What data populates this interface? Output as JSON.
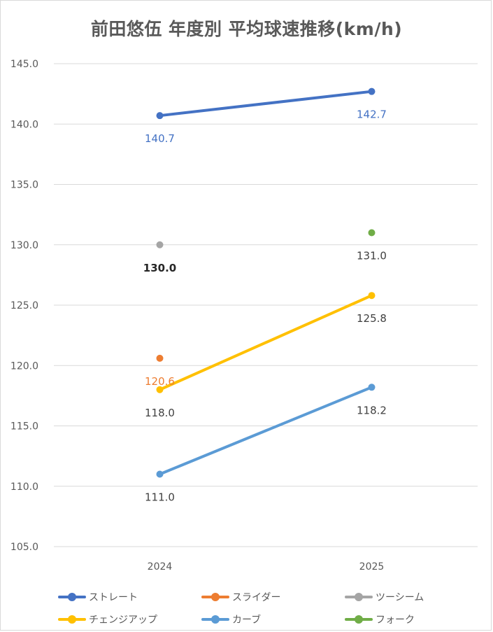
{
  "chart_data": {
    "type": "line",
    "title": "前田悠伍 年度別 平均球速推移(km/h)",
    "categories": [
      "2024",
      "2025"
    ],
    "ylim": [
      105,
      145
    ],
    "yticks": [
      "105.0",
      "110.0",
      "115.0",
      "120.0",
      "125.0",
      "130.0",
      "135.0",
      "140.0",
      "145.0"
    ],
    "grid": true,
    "legend_position": "bottom",
    "series": [
      {
        "name": "ストレート",
        "color": "#4472C4",
        "values": [
          140.7,
          142.7
        ],
        "labels": [
          "140.7",
          "142.7"
        ],
        "label_color": "#4472C4",
        "label_bold": false
      },
      {
        "name": "スライダー",
        "color": "#ED7D31",
        "values": [
          120.6,
          null
        ],
        "labels": [
          "120.6",
          ""
        ],
        "label_color": "#ED7D31",
        "label_bold": false
      },
      {
        "name": "ツーシーム",
        "color": "#A5A5A5",
        "values": [
          130.0,
          null
        ],
        "labels": [
          "130.0",
          ""
        ],
        "label_color": "#262626",
        "label_bold": true
      },
      {
        "name": "チェンジアップ",
        "color": "#FFC000",
        "values": [
          118.0,
          125.8
        ],
        "labels": [
          "118.0",
          "125.8"
        ],
        "label_color": "#404040",
        "label_bold": false
      },
      {
        "name": "カーブ",
        "color": "#5B9BD5",
        "values": [
          111.0,
          118.2
        ],
        "labels": [
          "111.0",
          "118.2"
        ],
        "label_color": "#404040",
        "label_bold": false
      },
      {
        "name": "フォーク",
        "color": "#70AD47",
        "values": [
          null,
          131.0
        ],
        "labels": [
          "",
          "131.0"
        ],
        "label_color": "#404040",
        "label_bold": false
      }
    ]
  }
}
